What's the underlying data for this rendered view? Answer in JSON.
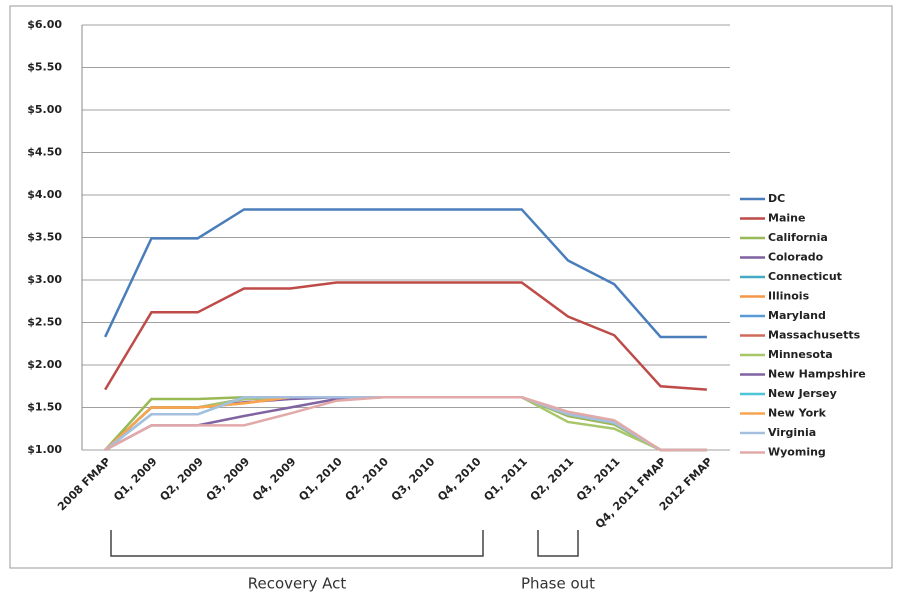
{
  "chart_data": {
    "type": "line",
    "categories": [
      "2008 FMAP",
      "Q1, 2009",
      "Q2, 2009",
      "Q3, 2009",
      "Q4, 2009",
      "Q1, 2010",
      "Q2, 2010",
      "Q3, 2010",
      "Q4, 2010",
      "Q1, 2011",
      "Q2, 2011",
      "Q3, 2011",
      "Q4, 2011 FMAP",
      "2012 FMAP"
    ],
    "ylim": [
      1,
      6
    ],
    "yticks": [
      {
        "value": 1,
        "label": "$1.00"
      },
      {
        "value": 1.5,
        "label": "$1.50"
      },
      {
        "value": 2,
        "label": "$2.00"
      },
      {
        "value": 2.5,
        "label": "$2.50"
      },
      {
        "value": 3,
        "label": "$3.00"
      },
      {
        "value": 3.5,
        "label": "$3.50"
      },
      {
        "value": 4,
        "label": "$4.00"
      },
      {
        "value": 4.5,
        "label": "$4.50"
      },
      {
        "value": 5,
        "label": "$5.00"
      },
      {
        "value": 5.5,
        "label": "$5.50"
      },
      {
        "value": 6,
        "label": "$6.00"
      }
    ],
    "grid": true,
    "legend": "right",
    "series": [
      {
        "name": "DC",
        "color": "#4a7ebb",
        "values": [
          2.33,
          3.49,
          3.49,
          3.83,
          3.83,
          3.83,
          3.83,
          3.83,
          3.83,
          3.83,
          3.23,
          2.95,
          2.33,
          2.33
        ]
      },
      {
        "name": "Maine",
        "color": "#be4b48",
        "values": [
          1.71,
          2.62,
          2.62,
          2.9,
          2.9,
          2.97,
          2.97,
          2.97,
          2.97,
          2.97,
          2.57,
          2.35,
          1.75,
          1.71
        ]
      },
      {
        "name": "California",
        "color": "#98b954",
        "values": [
          1,
          1.6,
          1.6,
          1.62,
          1.62,
          1.62,
          1.62,
          1.62,
          1.62,
          1.62,
          1.4,
          1.3,
          1,
          1
        ]
      },
      {
        "name": "Colorado",
        "color": "#7d60a0",
        "values": [
          1,
          1.5,
          1.5,
          1.56,
          1.6,
          1.62,
          1.62,
          1.62,
          1.62,
          1.62,
          1.42,
          1.32,
          1,
          1
        ]
      },
      {
        "name": "Connecticut",
        "color": "#46aac5",
        "values": [
          1,
          1.5,
          1.5,
          1.6,
          1.62,
          1.62,
          1.62,
          1.62,
          1.62,
          1.62,
          1.42,
          1.32,
          1,
          1
        ]
      },
      {
        "name": "Illinois",
        "color": "#f79646",
        "values": [
          1,
          1.5,
          1.5,
          1.55,
          1.62,
          1.62,
          1.62,
          1.62,
          1.62,
          1.62,
          1.42,
          1.32,
          1,
          1
        ]
      },
      {
        "name": "Maryland",
        "color": "#5b9bd5",
        "values": [
          1,
          1.5,
          1.5,
          1.6,
          1.62,
          1.62,
          1.62,
          1.62,
          1.62,
          1.62,
          1.42,
          1.32,
          1,
          1
        ]
      },
      {
        "name": "Massachusetts",
        "color": "#d06a59",
        "values": [
          1,
          1.5,
          1.5,
          1.6,
          1.62,
          1.62,
          1.62,
          1.62,
          1.62,
          1.62,
          1.43,
          1.33,
          1,
          1
        ]
      },
      {
        "name": "Minnesota",
        "color": "#a8c66a",
        "values": [
          1,
          1.5,
          1.5,
          1.6,
          1.62,
          1.62,
          1.62,
          1.62,
          1.62,
          1.62,
          1.33,
          1.25,
          1,
          1
        ]
      },
      {
        "name": "New Hampshire",
        "color": "#8064a2",
        "values": [
          1,
          1.29,
          1.29,
          1.4,
          1.5,
          1.6,
          1.62,
          1.62,
          1.62,
          1.62,
          1.42,
          1.32,
          1,
          1
        ]
      },
      {
        "name": "New Jersey",
        "color": "#4bc6d6",
        "values": [
          1,
          1.42,
          1.42,
          1.62,
          1.62,
          1.62,
          1.62,
          1.62,
          1.62,
          1.62,
          1.42,
          1.32,
          1,
          1
        ]
      },
      {
        "name": "New York",
        "color": "#f9a550",
        "values": [
          1,
          1.5,
          1.5,
          1.55,
          1.62,
          1.62,
          1.62,
          1.62,
          1.62,
          1.62,
          1.42,
          1.32,
          1,
          1
        ]
      },
      {
        "name": "Virginia",
        "color": "#a5c0df",
        "values": [
          1,
          1.42,
          1.42,
          1.62,
          1.62,
          1.62,
          1.62,
          1.62,
          1.62,
          1.62,
          1.42,
          1.32,
          1,
          1
        ]
      },
      {
        "name": "Wyoming",
        "color": "#e2a9a9",
        "values": [
          1,
          1.29,
          1.29,
          1.29,
          1.43,
          1.58,
          1.62,
          1.62,
          1.62,
          1.62,
          1.45,
          1.35,
          1,
          1
        ]
      }
    ],
    "annotations": [
      "Recovery Act",
      "Phase out"
    ]
  }
}
